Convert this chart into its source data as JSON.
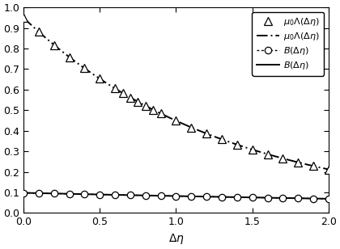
{
  "title": "",
  "xlabel": "$\\Delta\\eta$",
  "ylabel": "",
  "xlim": [
    0,
    2
  ],
  "ylim": [
    0,
    1
  ],
  "yticks": [
    0,
    0.1,
    0.2,
    0.3,
    0.4,
    0.5,
    0.6,
    0.7,
    0.8,
    0.9,
    1
  ],
  "xticks": [
    0,
    0.5,
    1.0,
    1.5,
    2.0
  ],
  "upper_A": 0.95,
  "upper_k": 0.75,
  "lower_A": 0.098,
  "lower_k": 0.175,
  "upper_marker_x": [
    0.0,
    0.1,
    0.2,
    0.3,
    0.4,
    0.5,
    0.6,
    0.65,
    0.7,
    0.75,
    0.8,
    0.85,
    0.9,
    1.0,
    1.1,
    1.2,
    1.3,
    1.4,
    1.5,
    1.6,
    1.7,
    1.8,
    1.9,
    2.0
  ],
  "lower_marker_x": [
    0.0,
    0.1,
    0.2,
    0.3,
    0.4,
    0.5,
    0.6,
    0.7,
    0.8,
    0.9,
    1.0,
    1.1,
    1.2,
    1.3,
    1.4,
    1.5,
    1.6,
    1.7,
    1.8,
    1.9,
    2.0
  ],
  "figsize": [
    4.2,
    3.08
  ],
  "dpi": 100,
  "background_color": "#ffffff"
}
